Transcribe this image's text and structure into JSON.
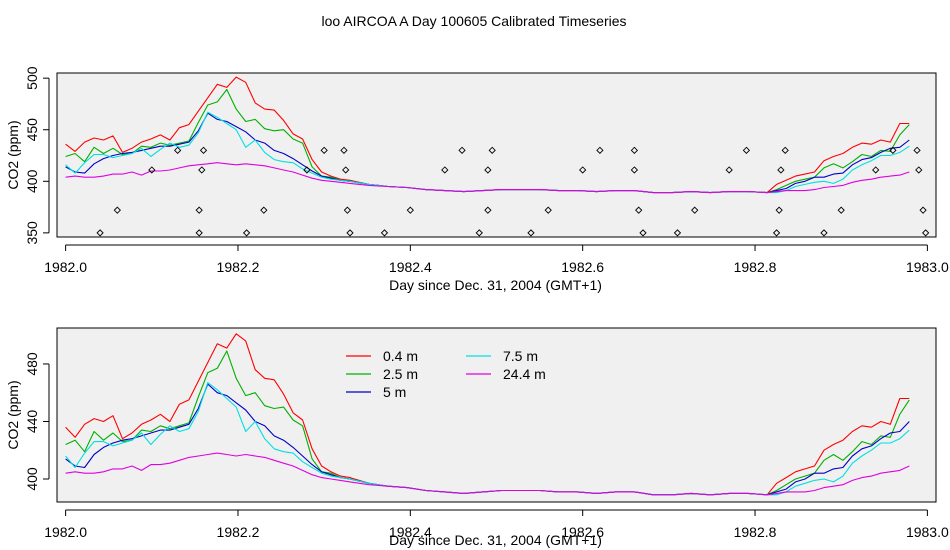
{
  "title": "loo AIRCOA A  Day 100605  Calibrated Timeseries",
  "colors": {
    "background": "#ffffff",
    "panel_bg": "#f0f0f0",
    "axis": "#000000"
  },
  "chart_data": [
    {
      "type": "line",
      "panel": "top",
      "xlabel": "Day since Dec. 31, 2004 (GMT+1)",
      "ylabel": "CO2 (ppm)",
      "xlim": [
        1981.99,
        1983.01
      ],
      "ylim": [
        346,
        505
      ],
      "xticks": [
        1982.0,
        1982.2,
        1982.4,
        1982.6,
        1982.8,
        1983.0
      ],
      "xtick_labels": [
        "1982.0",
        "1982.2",
        "1982.4",
        "1982.6",
        "1982.8",
        "1983.0"
      ],
      "yticks": [
        350,
        400,
        450,
        500
      ],
      "ytick_labels": [
        "350",
        "400",
        "450",
        "500"
      ],
      "grid": false,
      "x": [
        1982.0,
        1982.011,
        1982.022,
        1982.033,
        1982.044,
        1982.055,
        1982.066,
        1982.077,
        1982.088,
        1982.099,
        1982.11,
        1982.121,
        1982.132,
        1982.143,
        1982.154,
        1982.165,
        1982.176,
        1982.187,
        1982.198,
        1982.209,
        1982.22,
        1982.231,
        1982.242,
        1982.253,
        1982.264,
        1982.275,
        1982.286,
        1982.297,
        1982.308,
        1982.319,
        1982.33,
        1982.352,
        1982.374,
        1982.396,
        1982.418,
        1982.44,
        1982.462,
        1982.484,
        1982.506,
        1982.528,
        1982.55,
        1982.572,
        1982.594,
        1982.616,
        1982.638,
        1982.66,
        1982.682,
        1982.704,
        1982.726,
        1982.748,
        1982.77,
        1982.792,
        1982.814,
        1982.825,
        1982.836,
        1982.847,
        1982.858,
        1982.869,
        1982.88,
        1982.891,
        1982.902,
        1982.913,
        1982.924,
        1982.935,
        1982.946,
        1982.957,
        1982.968,
        1982.979
      ],
      "series": [
        {
          "name": "0.4 m",
          "color": "#ff0000",
          "values": [
            436,
            429,
            438,
            442,
            440,
            444,
            428,
            432,
            438,
            441,
            445,
            440,
            452,
            455,
            468,
            481,
            494,
            491,
            501,
            496,
            476,
            470,
            469,
            459,
            446,
            441,
            421,
            409,
            405,
            402,
            401,
            397,
            395,
            394,
            392,
            391,
            390,
            391,
            392,
            392,
            392,
            391,
            391,
            390,
            391,
            391,
            389,
            389,
            390,
            389,
            390,
            390,
            389,
            397,
            401,
            405,
            407,
            409,
            420,
            424,
            427,
            433,
            437,
            436,
            440,
            438,
            456,
            456
          ]
        },
        {
          "name": "2.5 m",
          "color": "#00b000",
          "values": [
            424,
            427,
            419,
            433,
            427,
            432,
            426,
            427,
            434,
            433,
            437,
            435,
            437,
            439,
            457,
            474,
            477,
            489,
            470,
            458,
            460,
            451,
            449,
            450,
            441,
            437,
            414,
            405,
            404,
            401,
            400,
            397,
            395,
            394,
            392,
            391,
            390,
            391,
            392,
            392,
            392,
            391,
            391,
            390,
            391,
            391,
            389,
            389,
            390,
            389,
            390,
            390,
            389,
            392,
            396,
            400,
            402,
            404,
            413,
            417,
            413,
            419,
            426,
            424,
            430,
            429,
            445,
            455
          ]
        },
        {
          "name": "5 m",
          "color": "#0000c8",
          "values": [
            414,
            409,
            408,
            417,
            422,
            425,
            427,
            428,
            430,
            432,
            434,
            434,
            436,
            438,
            449,
            466,
            460,
            458,
            453,
            448,
            440,
            437,
            430,
            427,
            422,
            416,
            410,
            405,
            403,
            401,
            400,
            397,
            395,
            394,
            392,
            391,
            390,
            391,
            392,
            392,
            392,
            391,
            391,
            390,
            391,
            391,
            389,
            389,
            390,
            389,
            390,
            390,
            389,
            391,
            393,
            398,
            400,
            404,
            404,
            407,
            408,
            416,
            421,
            423,
            428,
            432,
            433,
            440
          ]
        },
        {
          "name": "7.5 m",
          "color": "#00e0e0",
          "values": [
            416,
            408,
            418,
            426,
            426,
            423,
            425,
            427,
            432,
            424,
            431,
            437,
            433,
            435,
            447,
            467,
            462,
            456,
            450,
            433,
            440,
            428,
            421,
            419,
            418,
            412,
            408,
            404,
            402,
            401,
            400,
            397,
            395,
            394,
            392,
            391,
            390,
            391,
            392,
            392,
            392,
            391,
            391,
            390,
            391,
            391,
            389,
            389,
            390,
            389,
            390,
            390,
            389,
            389,
            391,
            395,
            397,
            399,
            400,
            398,
            402,
            411,
            416,
            420,
            425,
            425,
            428,
            434
          ]
        },
        {
          "name": "24.4 m",
          "color": "#e000e0",
          "values": [
            404,
            405,
            404,
            404,
            405,
            407,
            407,
            409,
            406,
            410,
            410,
            411,
            413,
            415,
            416,
            417,
            418,
            417,
            416,
            417,
            416,
            415,
            413,
            411,
            409,
            406,
            403,
            401,
            400,
            399,
            398,
            396,
            395,
            394,
            392,
            391,
            390,
            391,
            392,
            392,
            392,
            391,
            391,
            390,
            391,
            391,
            389,
            389,
            390,
            389,
            390,
            390,
            389,
            390,
            391,
            391,
            391,
            392,
            394,
            395,
            396,
            399,
            401,
            402,
            404,
            405,
            406,
            409
          ]
        }
      ],
      "markers": {
        "symbol": "diamond",
        "points": [
          [
            1982.04,
            350
          ],
          [
            1982.06,
            372
          ],
          [
            1982.1,
            411
          ],
          [
            1982.13,
            430
          ],
          [
            1982.155,
            350
          ],
          [
            1982.155,
            372
          ],
          [
            1982.158,
            411
          ],
          [
            1982.16,
            430
          ],
          [
            1982.21,
            350
          ],
          [
            1982.23,
            372
          ],
          [
            1982.28,
            411
          ],
          [
            1982.3,
            430
          ],
          [
            1982.323,
            430
          ],
          [
            1982.325,
            411
          ],
          [
            1982.327,
            372
          ],
          [
            1982.33,
            350
          ],
          [
            1982.37,
            350
          ],
          [
            1982.4,
            372
          ],
          [
            1982.44,
            411
          ],
          [
            1982.46,
            430
          ],
          [
            1982.48,
            350
          ],
          [
            1982.49,
            372
          ],
          [
            1982.49,
            411
          ],
          [
            1982.495,
            430
          ],
          [
            1982.54,
            350
          ],
          [
            1982.56,
            372
          ],
          [
            1982.6,
            411
          ],
          [
            1982.62,
            430
          ],
          [
            1982.66,
            430
          ],
          [
            1982.66,
            411
          ],
          [
            1982.665,
            372
          ],
          [
            1982.67,
            350
          ],
          [
            1982.71,
            350
          ],
          [
            1982.73,
            372
          ],
          [
            1982.77,
            411
          ],
          [
            1982.79,
            430
          ],
          [
            1982.825,
            350
          ],
          [
            1982.828,
            372
          ],
          [
            1982.83,
            411
          ],
          [
            1982.835,
            430
          ],
          [
            1982.88,
            350
          ],
          [
            1982.9,
            372
          ],
          [
            1982.94,
            411
          ],
          [
            1982.96,
            430
          ],
          [
            1982.988,
            430
          ],
          [
            1982.99,
            411
          ],
          [
            1982.995,
            372
          ],
          [
            1982.998,
            350
          ]
        ]
      }
    },
    {
      "type": "line",
      "panel": "bottom",
      "xlabel": "Day since Dec. 31, 2004 (GMT+1)",
      "ylabel": "CO2 (ppm)",
      "xlim": [
        1981.99,
        1983.01
      ],
      "ylim": [
        384,
        505
      ],
      "xticks": [
        1982.0,
        1982.2,
        1982.4,
        1982.6,
        1982.8,
        1983.0
      ],
      "xtick_labels": [
        "1982.0",
        "1982.2",
        "1982.4",
        "1982.6",
        "1982.8",
        "1983.0"
      ],
      "yticks": [
        400,
        440,
        480
      ],
      "ytick_labels": [
        "400",
        "440",
        "480"
      ],
      "grid": false,
      "legend": {
        "position": "top-left",
        "columns": 2
      },
      "x": [
        1982.0,
        1982.011,
        1982.022,
        1982.033,
        1982.044,
        1982.055,
        1982.066,
        1982.077,
        1982.088,
        1982.099,
        1982.11,
        1982.121,
        1982.132,
        1982.143,
        1982.154,
        1982.165,
        1982.176,
        1982.187,
        1982.198,
        1982.209,
        1982.22,
        1982.231,
        1982.242,
        1982.253,
        1982.264,
        1982.275,
        1982.286,
        1982.297,
        1982.308,
        1982.319,
        1982.33,
        1982.352,
        1982.374,
        1982.396,
        1982.418,
        1982.44,
        1982.462,
        1982.484,
        1982.506,
        1982.528,
        1982.55,
        1982.572,
        1982.594,
        1982.616,
        1982.638,
        1982.66,
        1982.682,
        1982.704,
        1982.726,
        1982.748,
        1982.77,
        1982.792,
        1982.814,
        1982.825,
        1982.836,
        1982.847,
        1982.858,
        1982.869,
        1982.88,
        1982.891,
        1982.902,
        1982.913,
        1982.924,
        1982.935,
        1982.946,
        1982.957,
        1982.968,
        1982.979
      ],
      "series": [
        {
          "name": "0.4 m",
          "color": "#ff0000",
          "values": [
            436,
            429,
            438,
            442,
            440,
            444,
            428,
            432,
            438,
            441,
            445,
            440,
            452,
            455,
            468,
            481,
            494,
            491,
            501,
            496,
            476,
            470,
            469,
            459,
            446,
            441,
            421,
            409,
            405,
            402,
            401,
            397,
            395,
            394,
            392,
            391,
            390,
            391,
            392,
            392,
            392,
            391,
            391,
            390,
            391,
            391,
            389,
            389,
            390,
            389,
            390,
            390,
            389,
            397,
            401,
            405,
            407,
            409,
            420,
            424,
            427,
            433,
            437,
            436,
            440,
            438,
            456,
            456
          ]
        },
        {
          "name": "2.5 m",
          "color": "#00b000",
          "values": [
            424,
            427,
            419,
            433,
            427,
            432,
            426,
            427,
            434,
            433,
            437,
            435,
            437,
            439,
            457,
            474,
            477,
            489,
            470,
            458,
            460,
            451,
            449,
            450,
            441,
            437,
            414,
            405,
            404,
            401,
            400,
            397,
            395,
            394,
            392,
            391,
            390,
            391,
            392,
            392,
            392,
            391,
            391,
            390,
            391,
            391,
            389,
            389,
            390,
            389,
            390,
            390,
            389,
            392,
            396,
            400,
            402,
            404,
            413,
            417,
            413,
            419,
            426,
            424,
            430,
            429,
            445,
            455
          ]
        },
        {
          "name": "5 m",
          "color": "#0000c8",
          "values": [
            414,
            409,
            408,
            417,
            422,
            425,
            427,
            428,
            430,
            432,
            434,
            434,
            436,
            438,
            449,
            466,
            460,
            458,
            453,
            448,
            440,
            437,
            430,
            427,
            422,
            416,
            410,
            405,
            403,
            401,
            400,
            397,
            395,
            394,
            392,
            391,
            390,
            391,
            392,
            392,
            392,
            391,
            391,
            390,
            391,
            391,
            389,
            389,
            390,
            389,
            390,
            390,
            389,
            391,
            393,
            398,
            400,
            404,
            404,
            407,
            408,
            416,
            421,
            423,
            428,
            432,
            433,
            440
          ]
        },
        {
          "name": "7.5 m",
          "color": "#00e0e0",
          "values": [
            416,
            408,
            418,
            426,
            426,
            423,
            425,
            427,
            432,
            424,
            431,
            437,
            433,
            435,
            447,
            467,
            462,
            456,
            450,
            433,
            440,
            428,
            421,
            419,
            418,
            412,
            408,
            404,
            402,
            401,
            400,
            397,
            395,
            394,
            392,
            391,
            390,
            391,
            392,
            392,
            392,
            391,
            391,
            390,
            391,
            391,
            389,
            389,
            390,
            389,
            390,
            390,
            389,
            389,
            391,
            395,
            397,
            399,
            400,
            398,
            402,
            411,
            416,
            420,
            425,
            425,
            428,
            434
          ]
        },
        {
          "name": "24.4 m",
          "color": "#e000e0",
          "values": [
            404,
            405,
            404,
            404,
            405,
            407,
            407,
            409,
            406,
            410,
            410,
            411,
            413,
            415,
            416,
            417,
            418,
            417,
            416,
            417,
            416,
            415,
            413,
            411,
            409,
            406,
            403,
            401,
            400,
            399,
            398,
            396,
            395,
            394,
            392,
            391,
            390,
            391,
            392,
            392,
            392,
            391,
            391,
            390,
            391,
            391,
            389,
            389,
            390,
            389,
            390,
            390,
            389,
            390,
            391,
            391,
            391,
            392,
            394,
            395,
            396,
            399,
            401,
            402,
            404,
            405,
            406,
            409
          ]
        }
      ]
    }
  ]
}
